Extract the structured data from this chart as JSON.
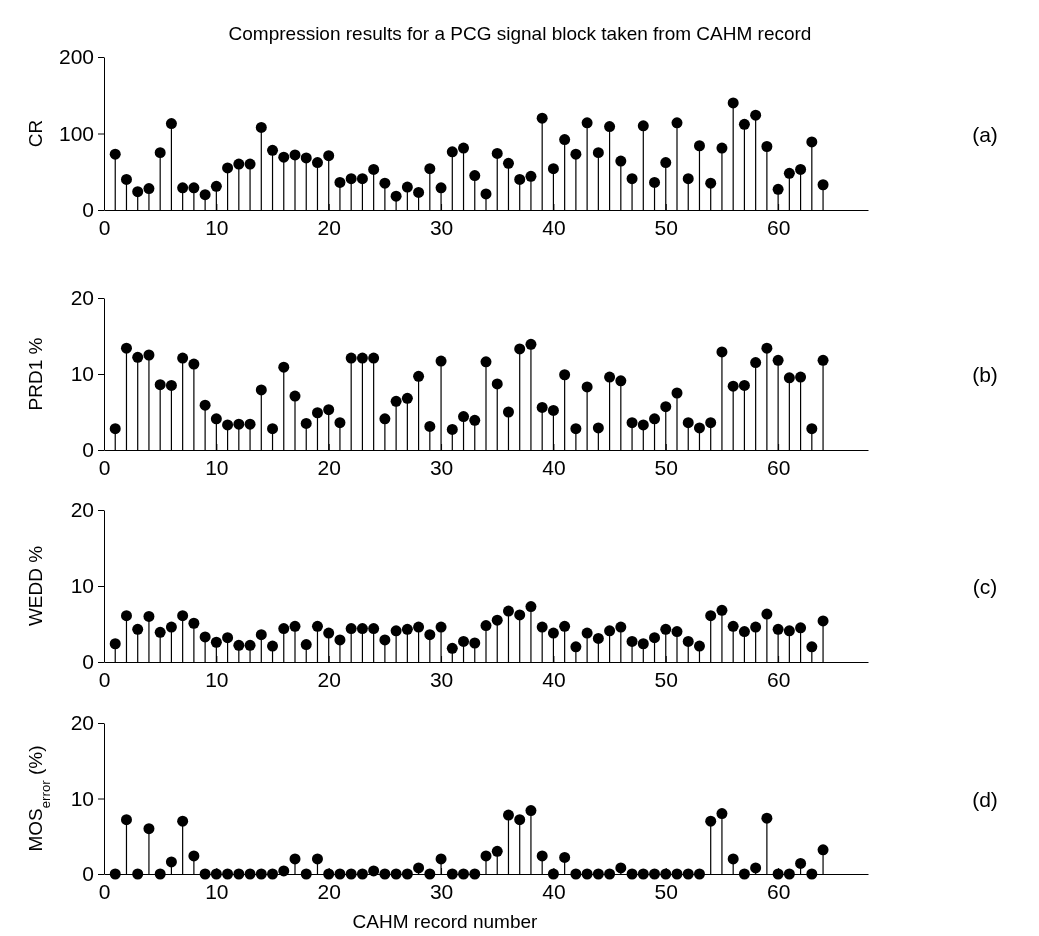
{
  "chart_data": [
    {
      "type": "lollipop",
      "title": "Compression results for a PCG signal block taken from CAHM record",
      "ylabel": "CR",
      "annotations": [
        "(a)"
      ],
      "x": [
        1,
        2,
        3,
        4,
        5,
        6,
        7,
        8,
        9,
        10,
        11,
        12,
        13,
        14,
        15,
        16,
        17,
        18,
        19,
        20,
        21,
        22,
        23,
        24,
        25,
        26,
        27,
        28,
        29,
        30,
        31,
        32,
        33,
        34,
        35,
        36,
        37,
        38,
        39,
        40,
        41,
        42,
        43,
        44,
        45,
        46,
        47,
        48,
        49,
        50,
        51,
        52,
        53,
        54,
        55,
        56,
        57,
        58,
        59,
        60,
        61,
        62,
        63,
        64
      ],
      "values": [
        73,
        40,
        24,
        28,
        75,
        113,
        29,
        29,
        20,
        31,
        55,
        60,
        60,
        108,
        78,
        69,
        72,
        68,
        62,
        71,
        36,
        41,
        41,
        53,
        35,
        18,
        30,
        23,
        54,
        29,
        76,
        81,
        45,
        21,
        74,
        61,
        40,
        44,
        120,
        54,
        92,
        73,
        114,
        75,
        109,
        64,
        41,
        110,
        36,
        62,
        114,
        41,
        84,
        35,
        81,
        140,
        112,
        124,
        83,
        27,
        48,
        53,
        89,
        33
      ],
      "color": "#000000",
      "marker": "circle",
      "xlim": [
        0,
        68
      ],
      "xticks": [
        0,
        10,
        20,
        30,
        40,
        50,
        60
      ],
      "ylim": [
        0,
        200
      ],
      "yticks": [
        0,
        100,
        200
      ],
      "grid": false
    },
    {
      "type": "lollipop",
      "ylabel": "PRD1 %",
      "annotations": [
        "(b)"
      ],
      "x": [
        1,
        2,
        3,
        4,
        5,
        6,
        7,
        8,
        9,
        10,
        11,
        12,
        13,
        14,
        15,
        16,
        17,
        18,
        19,
        20,
        21,
        22,
        23,
        24,
        25,
        26,
        27,
        28,
        29,
        30,
        31,
        32,
        33,
        34,
        35,
        36,
        37,
        38,
        39,
        40,
        41,
        42,
        43,
        44,
        45,
        46,
        47,
        48,
        49,
        50,
        51,
        52,
        53,
        54,
        55,
        56,
        57,
        58,
        59,
        60,
        61,
        62,
        63,
        64
      ],
      "values": [
        2.8,
        13.4,
        12.2,
        12.5,
        8.6,
        8.5,
        12.1,
        11.3,
        5.9,
        4.1,
        3.3,
        3.4,
        3.4,
        7.9,
        2.8,
        10.9,
        7.1,
        3.5,
        4.9,
        5.3,
        3.6,
        12.1,
        12.1,
        12.1,
        4.1,
        6.4,
        6.8,
        9.7,
        3.1,
        11.7,
        2.7,
        4.4,
        3.9,
        11.6,
        8.7,
        5.0,
        13.3,
        13.9,
        5.6,
        5.2,
        9.9,
        2.8,
        8.3,
        2.9,
        9.6,
        9.1,
        3.6,
        3.3,
        4.1,
        5.7,
        7.5,
        3.6,
        2.9,
        3.6,
        12.9,
        8.4,
        8.5,
        11.5,
        13.4,
        11.8,
        9.5,
        9.6,
        2.8,
        11.8
      ],
      "color": "#000000",
      "marker": "circle",
      "xlim": [
        0,
        68
      ],
      "xticks": [
        0,
        10,
        20,
        30,
        40,
        50,
        60
      ],
      "ylim": [
        0,
        20
      ],
      "yticks": [
        0,
        10,
        20
      ],
      "grid": false
    },
    {
      "type": "lollipop",
      "ylabel": "WEDD %",
      "annotations": [
        "(c)"
      ],
      "x": [
        1,
        2,
        3,
        4,
        5,
        6,
        7,
        8,
        9,
        10,
        11,
        12,
        13,
        14,
        15,
        16,
        17,
        18,
        19,
        20,
        21,
        22,
        23,
        24,
        25,
        26,
        27,
        28,
        29,
        30,
        31,
        32,
        33,
        34,
        35,
        36,
        37,
        38,
        39,
        40,
        41,
        42,
        43,
        44,
        45,
        46,
        47,
        48,
        49,
        50,
        51,
        52,
        53,
        54,
        55,
        56,
        57,
        58,
        59,
        60,
        61,
        62,
        63,
        64
      ],
      "values": [
        2.4,
        6.1,
        4.3,
        6.0,
        3.9,
        4.6,
        6.1,
        5.1,
        3.3,
        2.6,
        3.2,
        2.2,
        2.2,
        3.6,
        2.1,
        4.4,
        4.7,
        2.3,
        4.7,
        3.8,
        2.9,
        4.4,
        4.4,
        4.4,
        2.9,
        4.1,
        4.3,
        4.6,
        3.6,
        4.6,
        1.8,
        2.7,
        2.5,
        4.8,
        5.5,
        6.7,
        6.2,
        7.3,
        4.6,
        3.8,
        4.7,
        2.0,
        3.8,
        3.1,
        4.1,
        4.6,
        2.7,
        2.4,
        3.2,
        4.3,
        4.0,
        2.7,
        2.1,
        6.1,
        6.8,
        4.7,
        4.0,
        4.6,
        6.3,
        4.3,
        4.1,
        4.5,
        2.0,
        5.4
      ],
      "color": "#000000",
      "marker": "circle",
      "xlim": [
        0,
        68
      ],
      "xticks": [
        0,
        10,
        20,
        30,
        40,
        50,
        60
      ],
      "ylim": [
        0,
        20
      ],
      "yticks": [
        0,
        10,
        20
      ],
      "grid": false
    },
    {
      "type": "lollipop",
      "ylabel": "MOS$_{error}$ (%)",
      "xlabel": "CAHM record number",
      "annotations": [
        "(d)"
      ],
      "x": [
        1,
        2,
        3,
        4,
        5,
        6,
        7,
        8,
        9,
        10,
        11,
        12,
        13,
        14,
        15,
        16,
        17,
        18,
        19,
        20,
        21,
        22,
        23,
        24,
        25,
        26,
        27,
        28,
        29,
        30,
        31,
        32,
        33,
        34,
        35,
        36,
        37,
        38,
        39,
        40,
        41,
        42,
        43,
        44,
        45,
        46,
        47,
        48,
        49,
        50,
        51,
        52,
        53,
        54,
        55,
        56,
        57,
        58,
        59,
        60,
        61,
        62,
        63,
        64
      ],
      "values": [
        0,
        7.2,
        0,
        6.0,
        0,
        1.6,
        7.0,
        2.4,
        0,
        0,
        0,
        0,
        0,
        0,
        0,
        0.4,
        2.0,
        0,
        2.0,
        0,
        0,
        0,
        0,
        0.4,
        0,
        0,
        0,
        0.8,
        0,
        2.0,
        0,
        0,
        0,
        2.4,
        3.0,
        7.8,
        7.2,
        8.4,
        2.4,
        0,
        2.2,
        0,
        0,
        0,
        0,
        0.8,
        0,
        0,
        0,
        0,
        0,
        0,
        0,
        7.0,
        8.0,
        2.0,
        0,
        0.8,
        7.4,
        0,
        0,
        1.4,
        0,
        3.2
      ],
      "color": "#000000",
      "marker": "circle",
      "xlim": [
        0,
        68
      ],
      "xticks": [
        0,
        10,
        20,
        30,
        40,
        50,
        60
      ],
      "ylim": [
        0,
        20
      ],
      "yticks": [
        0,
        10,
        20
      ],
      "grid": false
    }
  ]
}
